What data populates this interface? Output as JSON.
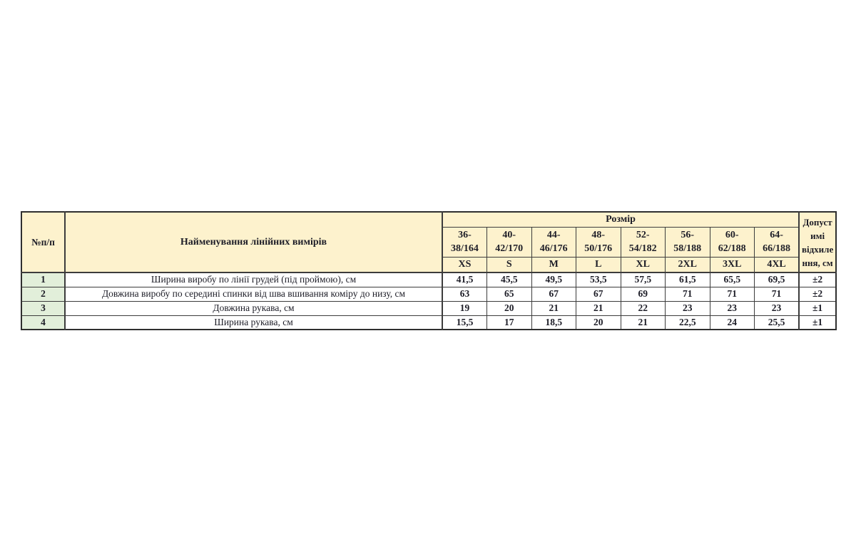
{
  "table": {
    "colors": {
      "header_bg": "#fdf2cd",
      "row_num_bg": "#e2efda",
      "border": "#3c3c3c",
      "text": "#1d1d27"
    },
    "headers": {
      "num": "№п/п",
      "name": "Найменування лінійних вимірів",
      "size_group": "Розмір",
      "tolerance": "Допуст\nимі\nвідхиле\nння, см"
    },
    "sizes": [
      {
        "range": "36-\n38/164",
        "letter": "XS"
      },
      {
        "range": "40-\n42/170",
        "letter": "S"
      },
      {
        "range": "44-\n46/176",
        "letter": "M"
      },
      {
        "range": "48-\n50/176",
        "letter": "L"
      },
      {
        "range": "52-\n54/182",
        "letter": "XL"
      },
      {
        "range": "56-\n58/188",
        "letter": "2XL"
      },
      {
        "range": "60-\n62/188",
        "letter": "3XL"
      },
      {
        "range": "64-\n66/188",
        "letter": "4XL"
      }
    ],
    "rows": [
      {
        "num": "1",
        "name": "Ширина виробу по лінії грудей (під проймою), см",
        "values": [
          "41,5",
          "45,5",
          "49,5",
          "53,5",
          "57,5",
          "61,5",
          "65,5",
          "69,5"
        ],
        "tolerance": "±2"
      },
      {
        "num": "2",
        "name": "Довжина виробу по середині спинки від шва вшивання коміру до низу, см",
        "values": [
          "63",
          "65",
          "67",
          "67",
          "69",
          "71",
          "71",
          "71"
        ],
        "tolerance": "±2"
      },
      {
        "num": "3",
        "name": "Довжина рукава, см",
        "values": [
          "19",
          "20",
          "21",
          "21",
          "22",
          "23",
          "23",
          "23"
        ],
        "tolerance": "±1"
      },
      {
        "num": "4",
        "name": "Ширина рукава, см",
        "values": [
          "15,5",
          "17",
          "18,5",
          "20",
          "21",
          "22,5",
          "24",
          "25,5"
        ],
        "tolerance": "±1"
      }
    ]
  }
}
